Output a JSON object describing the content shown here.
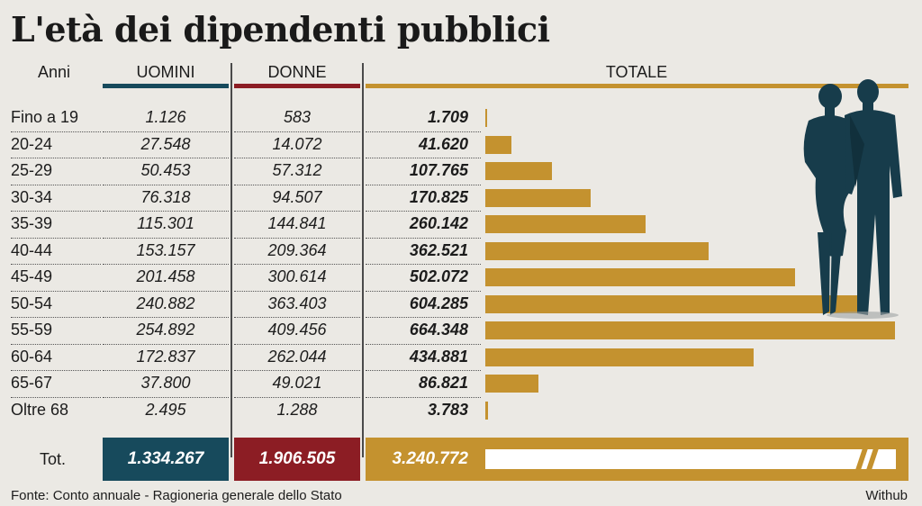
{
  "title": "L'età dei dipendenti pubblici",
  "headers": {
    "anni": "Anni",
    "uomini": "UOMINI",
    "donne": "DONNE",
    "totale": "TOTALE"
  },
  "colors": {
    "uomini": "#174a5c",
    "donne": "#8c1d24",
    "totale": "#c4922f",
    "figure": "#173c4b"
  },
  "rows": [
    {
      "age": "Fino a 19",
      "uomini": "1.126",
      "donne": "583",
      "totale": "1.709"
    },
    {
      "age": "20-24",
      "uomini": "27.548",
      "donne": "14.072",
      "totale": "41.620"
    },
    {
      "age": "25-29",
      "uomini": "50.453",
      "donne": "57.312",
      "totale": "107.765"
    },
    {
      "age": "30-34",
      "uomini": "76.318",
      "donne": "94.507",
      "totale": "170.825"
    },
    {
      "age": "35-39",
      "uomini": "115.301",
      "donne": "144.841",
      "totale": "260.142"
    },
    {
      "age": "40-44",
      "uomini": "153.157",
      "donne": "209.364",
      "totale": "362.521"
    },
    {
      "age": "45-49",
      "uomini": "201.458",
      "donne": "300.614",
      "totale": "502.072"
    },
    {
      "age": "50-54",
      "uomini": "240.882",
      "donne": "363.403",
      "totale": "604.285"
    },
    {
      "age": "55-59",
      "uomini": "254.892",
      "donne": "409.456",
      "totale": "664.348"
    },
    {
      "age": "60-64",
      "uomini": "172.837",
      "donne": "262.044",
      "totale": "434.881"
    },
    {
      "age": "65-67",
      "uomini": "37.800",
      "donne": "49.021",
      "totale": "86.821"
    },
    {
      "age": "Oltre 68",
      "uomini": "2.495",
      "donne": "1.288",
      "totale": "3.783"
    }
  ],
  "totals": {
    "label": "Tot.",
    "uomini": "1.334.267",
    "donne": "1.906.505",
    "totale": "3.240.772"
  },
  "footer": {
    "source": "Fonte: Conto annuale - Ragioneria generale dello Stato",
    "credit": "Withub"
  },
  "chart_data": {
    "type": "bar",
    "orientation": "horizontal",
    "categories": [
      "Fino a 19",
      "20-24",
      "25-29",
      "30-34",
      "35-39",
      "40-44",
      "45-49",
      "50-54",
      "55-59",
      "60-64",
      "65-67",
      "Oltre 68"
    ],
    "values": [
      1709,
      41620,
      107765,
      170825,
      260142,
      362521,
      502072,
      604285,
      664348,
      434881,
      86821,
      3783
    ],
    "total": 3240772,
    "series_color": "#c4922f"
  }
}
